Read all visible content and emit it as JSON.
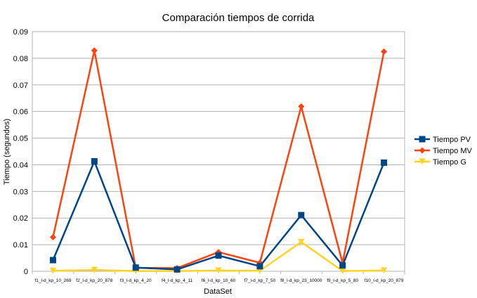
{
  "chart_data": {
    "type": "line",
    "title": "Comparación tiempos de corrida",
    "xlabel": "DataSet",
    "ylabel": "Tiempo (segundos)",
    "ylim": [
      0,
      0.09
    ],
    "yticks": [
      "0",
      "0.01",
      "0.02",
      "0.03",
      "0.04",
      "0.05",
      "0.06",
      "0.07",
      "0.08",
      "0.09"
    ],
    "grid": true,
    "legend_position": "right",
    "categories": [
      "f1_l-d_kp_10_269",
      "f2_l-d_kp_20_878",
      "f3_l-d_kp_4_20",
      "f4_l-d_kp_4_11",
      "f6_l-d_kp_10_60",
      "f7_l-d_kp_7_50",
      "f8_l-d_kp_23_10000",
      "f9_l-d_kp_5_80",
      "f10_l-d_kp_20_879"
    ],
    "series": [
      {
        "name": "Tiempo PV",
        "color": "#004586",
        "marker": "square",
        "values": [
          0.0042,
          0.0413,
          0.0014,
          0.0007,
          0.0059,
          0.0019,
          0.0211,
          0.0022,
          0.0408
        ]
      },
      {
        "name": "Tiempo MV",
        "color": "#ff420e",
        "marker": "diamond",
        "values": [
          0.0128,
          0.0829,
          0.0013,
          0.0012,
          0.0072,
          0.0032,
          0.0619,
          0.0031,
          0.0825
        ]
      },
      {
        "name": "Tiempo G",
        "color": "#ffd320",
        "marker": "triangle-down",
        "values": [
          0.0002,
          0.0005,
          0.0001,
          0.0001,
          0.0003,
          0.0002,
          0.011,
          0.0001,
          0.0003
        ]
      }
    ]
  }
}
